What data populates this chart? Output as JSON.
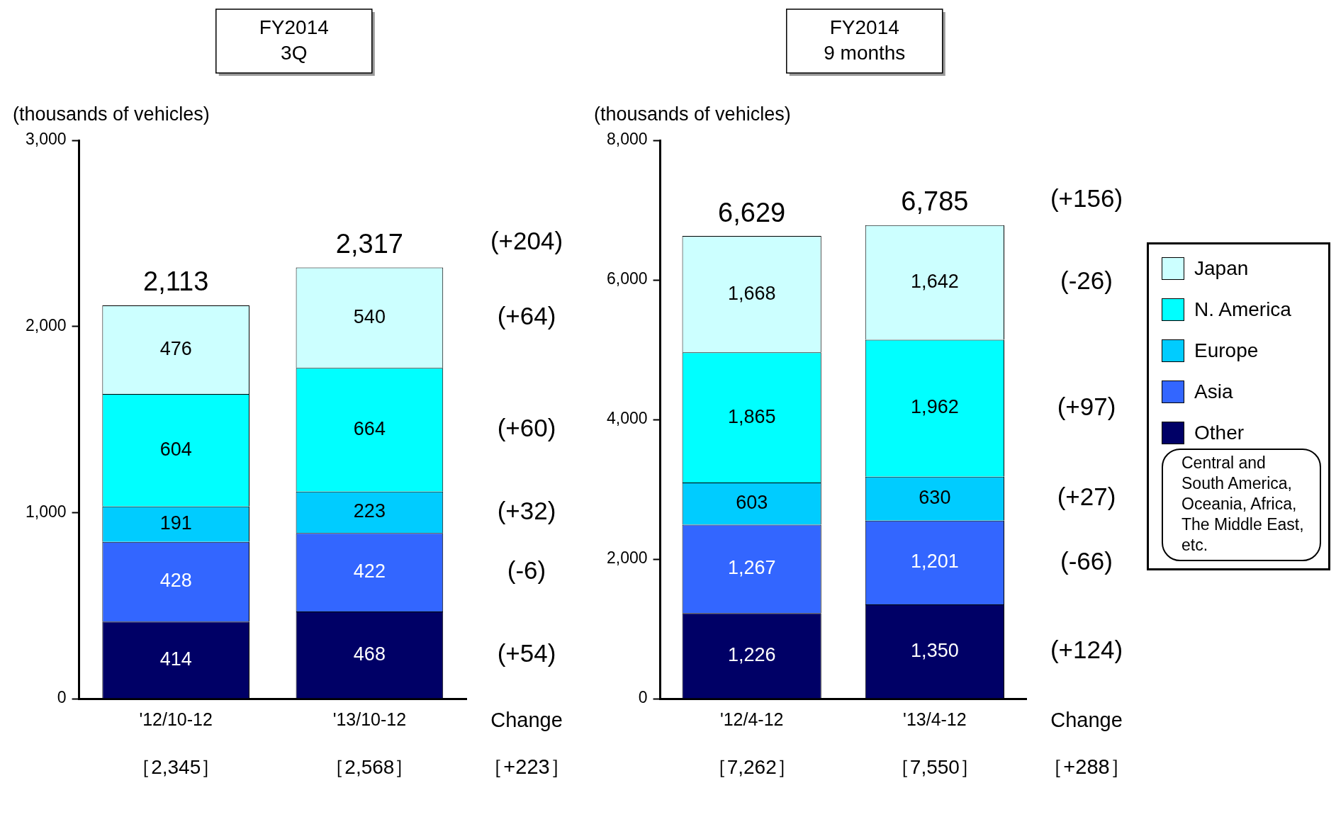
{
  "chart_data": [
    {
      "type": "bar",
      "title": "FY2014\n3Q",
      "ylabel": "(thousands of vehicles)",
      "stacked": true,
      "legend": false,
      "data_labels": true,
      "grid": false,
      "categories": [
        "'12/10-12",
        "'13/10-12"
      ],
      "ylim": [
        0,
        3000
      ],
      "yticks": [
        0,
        {
          "value": 1000,
          "label": "1,000"
        },
        {
          "value": 2000,
          "label": "2,000"
        },
        {
          "value": 3000,
          "label": "3,000"
        }
      ],
      "series": [
        {
          "color": "#000066",
          "values": [
            414,
            468
          ]
        },
        {
          "color": "#3366ff",
          "values": [
            428,
            422
          ]
        },
        {
          "color": "#00ccff",
          "values": [
            191,
            223
          ]
        },
        {
          "color": "#00ffff",
          "values": [
            604,
            664
          ]
        },
        {
          "color": "#ccffff",
          "values": [
            476,
            540
          ]
        }
      ],
      "totals": [
        "2,113",
        "2,317"
      ],
      "annotations": [
        "Change",
        "［+223］",
        "［2,345］",
        "［2,568］",
        "(+204)",
        "(+64)",
        "(+60)",
        "(+32)",
        "(-6)",
        "(+54)"
      ]
    },
    {
      "type": "bar",
      "title": "FY2014\n9 months",
      "ylabel": "(thousands of vehicles)",
      "stacked": true,
      "legend": "right",
      "grid": false,
      "categories": [
        "'12/4-12",
        "'13/4-12"
      ],
      "ylim": [
        0,
        8000
      ],
      "yticks": [
        0,
        {
          "value": 2000,
          "label": "2,000"
        },
        {
          "value": 4000,
          "label": "4,000"
        },
        {
          "value": 6000,
          "label": "6,000"
        },
        {
          "value": 8000,
          "label": "8,000"
        }
      ],
      "series": [
        {
          "name": "Other",
          "color": "#000066",
          "values": [
            1226,
            1350
          ],
          "value_labels": [
            "1,226",
            "1,350"
          ]
        },
        {
          "name": "Asia",
          "color": "#3366ff",
          "values": [
            1267,
            1201
          ],
          "value_labels": [
            "1,267",
            "1,201"
          ]
        },
        {
          "name": "Europe",
          "color": "#00ccff",
          "values": [
            603,
            630
          ],
          "value_labels": [
            "603",
            "630"
          ]
        },
        {
          "name": "N. America",
          "color": "#00ffff",
          "values": [
            1865,
            1962
          ],
          "value_labels": [
            "1,865",
            "1,962"
          ]
        },
        {
          "name": "Japan",
          "color": "#ccffff",
          "values": [
            1668,
            1642
          ],
          "value_labels": [
            "1,668",
            "1,642"
          ]
        }
      ],
      "totals": [
        "6,629",
        "6,785"
      ],
      "annotations": [
        "Change",
        "［+288］",
        "［7,262］",
        "［7,550］",
        "(+156)",
        "(-26)",
        "(+97)",
        "(+27)",
        "(-66)",
        "(+124)",
        "Central and South America, Oceania, Africa, The Middle East, etc."
      ]
    }
  ]
}
